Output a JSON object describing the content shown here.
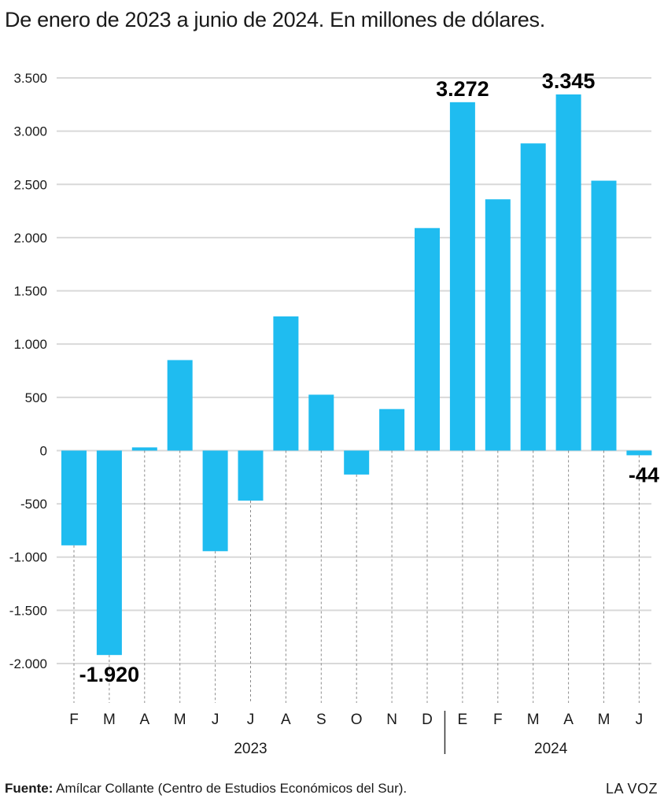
{
  "title": "De enero de 2023 a junio de 2024. En millones de dólares.",
  "footer": {
    "source_label": "Fuente:",
    "source_text": " Amílcar Collante (Centro de Estudios Económicos del Sur).",
    "brand": "LA VOZ"
  },
  "colors": {
    "bar": "#1fbcf0",
    "grid": "#d9d9d9",
    "text": "#1a1a1a"
  },
  "chart_data": {
    "type": "bar",
    "categories": [
      "F",
      "M",
      "A",
      "M",
      "J",
      "J",
      "A",
      "S",
      "O",
      "N",
      "D",
      "E",
      "F",
      "M",
      "A",
      "M",
      "J"
    ],
    "values": [
      -890,
      -1920,
      30,
      850,
      -945,
      -470,
      1260,
      525,
      -225,
      390,
      2090,
      3272,
      2360,
      2885,
      3345,
      2535,
      -44
    ],
    "year_groups": [
      {
        "label": "2023",
        "start": 0,
        "end": 10
      },
      {
        "label": "2024",
        "start": 11,
        "end": 16
      }
    ],
    "value_labels": [
      {
        "index": 1,
        "text": "-1.920"
      },
      {
        "index": 11,
        "text": "3.272"
      },
      {
        "index": 14,
        "text": "3.345"
      },
      {
        "index": 16,
        "text": "-44"
      }
    ],
    "yticks": [
      3500,
      3000,
      2500,
      2000,
      1500,
      1000,
      500,
      0,
      -500,
      -1000,
      -1500,
      -2000
    ],
    "ytick_labels": [
      "3.500",
      "3.000",
      "2.500",
      "2.000",
      "1.500",
      "1.000",
      "500",
      "0",
      "-500",
      "-1.000",
      "-1.500",
      "-2.000"
    ],
    "ylim": [
      -2000,
      3500
    ],
    "grid": true
  }
}
